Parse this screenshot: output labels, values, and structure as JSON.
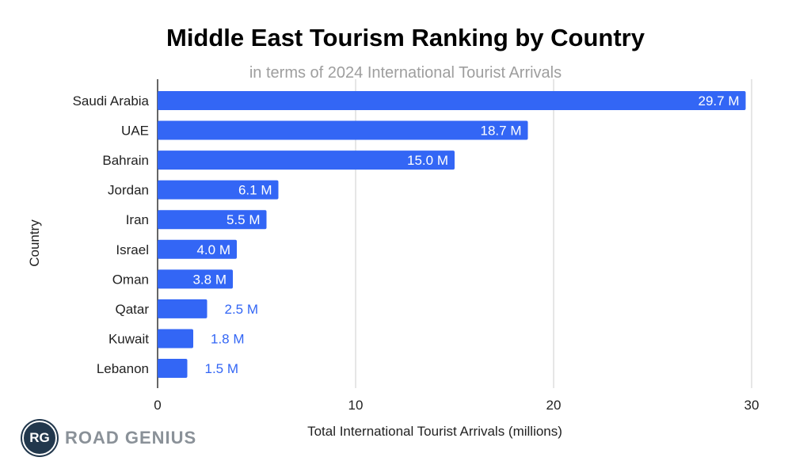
{
  "chart_data": {
    "type": "bar",
    "orientation": "horizontal",
    "title": "Middle East Tourism Ranking by Country",
    "subtitle": "in terms of 2024 International Tourist Arrivals",
    "xlabel": "Total International Tourist Arrivals (millions)",
    "ylabel": "Country",
    "categories": [
      "Saudi Arabia",
      "UAE",
      "Bahrain",
      "Jordan",
      "Iran",
      "Israel",
      "Oman",
      "Qatar",
      "Kuwait",
      "Lebanon"
    ],
    "values": [
      29.7,
      18.7,
      15.0,
      6.1,
      5.5,
      4.0,
      3.8,
      2.5,
      1.8,
      1.5
    ],
    "data_labels": [
      "29.7 M",
      "18.7 M",
      "15.0 M",
      "6.1 M",
      "5.5 M",
      "4.0 M",
      "3.8 M",
      "2.5 M",
      "1.8 M",
      "1.5 M"
    ],
    "xlim": [
      0,
      30
    ],
    "xticks": [
      0,
      10,
      20,
      30
    ],
    "xtick_labels": [
      "0",
      "10",
      "20",
      "30"
    ],
    "grid": true,
    "bar_color": "#3366f5"
  },
  "logo": {
    "initials": "RG",
    "name": "ROAD GENIUS"
  }
}
